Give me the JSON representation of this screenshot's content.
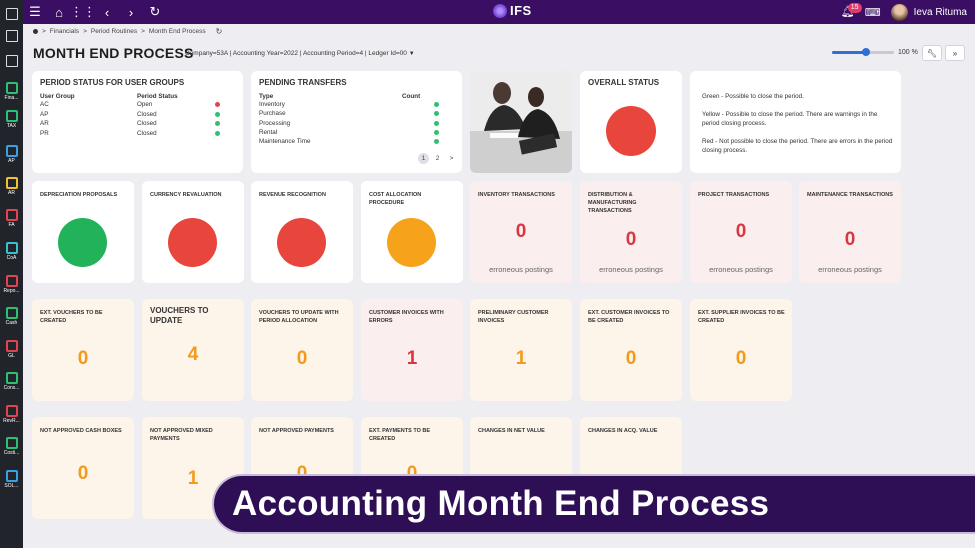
{
  "topbar": {
    "logo_text": "IFS",
    "notification_count": "15",
    "user_name": "Ieva Rituma"
  },
  "sidebar": {
    "items": [
      {
        "label": "",
        "icon": "expand-icon"
      },
      {
        "label": "",
        "icon": "bookmark-icon"
      },
      {
        "label": "",
        "icon": "pen-icon"
      },
      {
        "label": "Fina...",
        "icon": "finance-icon",
        "color": "#2fbf71"
      },
      {
        "label": "TAX",
        "icon": "tax-icon",
        "color": "#2fbf71"
      },
      {
        "label": "AP",
        "icon": "ap-icon",
        "color": "#3aa0e0"
      },
      {
        "label": "AR",
        "icon": "ar-icon",
        "color": "#f2c12e"
      },
      {
        "label": "FA",
        "icon": "fa-icon",
        "color": "#e0454f"
      },
      {
        "label": "CoA",
        "icon": "coa-icon",
        "color": "#3ac0c8"
      },
      {
        "label": "Repo...",
        "icon": "reports-icon",
        "color": "#e0454f"
      },
      {
        "label": "Cash",
        "icon": "cash-icon",
        "color": "#2fbf71"
      },
      {
        "label": "GL",
        "icon": "gl-icon",
        "color": "#e0454f"
      },
      {
        "label": "Cons...",
        "icon": "consolidation-icon",
        "color": "#2fbf71"
      },
      {
        "label": "RevR...",
        "icon": "revenue-icon",
        "color": "#e0454f"
      },
      {
        "label": "Costi...",
        "icon": "costing-icon",
        "color": "#2fbf71"
      },
      {
        "label": "SOL...",
        "icon": "sol-icon",
        "color": "#3aa0e0"
      }
    ]
  },
  "breadcrumb": {
    "items": [
      "Financials",
      "Period Routines",
      "Month End Process"
    ]
  },
  "page": {
    "title": "MONTH END PROCESS",
    "context": "Company=53A | Accounting Year=2022 | Accounting Period=4 | Ledger Id=00",
    "zoom_label": "100 %",
    "zoom_fraction": 0.55
  },
  "period_status": {
    "title": "PERIOD STATUS FOR USER GROUPS",
    "col1": "User Group",
    "col2": "Period Status",
    "rows": [
      {
        "group": "AC",
        "status": "Open",
        "color": "#e0454f"
      },
      {
        "group": "AP",
        "status": "Closed",
        "color": "#2fbf71"
      },
      {
        "group": "AR",
        "status": "Closed",
        "color": "#2fbf71"
      },
      {
        "group": "PR",
        "status": "Closed",
        "color": "#2fbf71"
      }
    ]
  },
  "pending_transfers": {
    "title": "PENDING TRANSFERS",
    "col1": "Type",
    "col2": "Count",
    "rows": [
      {
        "type": "Inventory",
        "color": "#2fbf71"
      },
      {
        "type": "Purchase",
        "color": "#2fbf71"
      },
      {
        "type": "Processing",
        "color": "#2fbf71"
      },
      {
        "type": "Rental",
        "color": "#2fbf71"
      },
      {
        "type": "Maintenance Time",
        "color": "#2fbf71"
      }
    ],
    "pages": [
      "1",
      "2",
      ">"
    ]
  },
  "overall_status": {
    "title": "OVERALL STATUS",
    "color": "#e8453c"
  },
  "legend": {
    "lines": [
      "Green - Possible to close the period.",
      "Yellow - Possible to close the period. There are warnings in the period closing process.",
      "Red - Not possible to close the period. There are errors in the period closing process."
    ]
  },
  "status_cards": [
    {
      "title": "DEPRECIATION PROPOSALS",
      "color": "#22b35a"
    },
    {
      "title": "CURRENCY REVALUATION",
      "color": "#e8453c"
    },
    {
      "title": "REVENUE RECOGNITION",
      "color": "#e8453c"
    },
    {
      "title": "COST ALLOCATION PROCEDURE",
      "color": "#f7a21b"
    }
  ],
  "posting_cards": [
    {
      "title": "INVENTORY TRANSACTIONS",
      "value": "0",
      "sub": "erroneous postings"
    },
    {
      "title": "DISTRIBUTION & MANUFACTURING TRANSACTIONS",
      "value": "0",
      "sub": "erroneous postings"
    },
    {
      "title": "PROJECT TRANSACTIONS",
      "value": "0",
      "sub": "erroneous postings"
    },
    {
      "title": "MAINTENANCE TRANSACTIONS",
      "value": "0",
      "sub": "erroneous postings"
    }
  ],
  "voucher_cards": [
    {
      "title": "EXT. VOUCHERS TO BE CREATED",
      "value": "0",
      "tone": "warn",
      "big": false
    },
    {
      "title": "VOUCHERS TO UPDATE",
      "value": "4",
      "tone": "warn",
      "big": true
    },
    {
      "title": "VOUCHERS TO UPDATE WITH PERIOD ALLOCATION",
      "value": "0",
      "tone": "warn",
      "big": false
    },
    {
      "title": "CUSTOMER INVOICES WITH ERRORS",
      "value": "1",
      "tone": "err",
      "big": false
    },
    {
      "title": "PRELIMINARY CUSTOMER INVOICES",
      "value": "1",
      "tone": "warn",
      "big": false
    },
    {
      "title": "EXT. CUSTOMER INVOICES TO BE CREATED",
      "value": "0",
      "tone": "warn",
      "big": false
    },
    {
      "title": "EXT. SUPPLIER INVOICES TO BE CREATED",
      "value": "0",
      "tone": "warn",
      "big": false
    }
  ],
  "payment_cards": [
    {
      "title": "NOT APPROVED CASH BOXES",
      "value": "0"
    },
    {
      "title": "NOT APPROVED MIXED PAYMENTS",
      "value": "1"
    },
    {
      "title": "NOT APPROVED PAYMENTS",
      "value": "0"
    },
    {
      "title": "EXT. PAYMENTS TO BE CREATED",
      "value": "0"
    },
    {
      "title": "CHANGES IN NET VALUE",
      "value": ""
    },
    {
      "title": "CHANGES IN ACQ. VALUE",
      "value": ""
    }
  ],
  "banner": {
    "text": "Accounting Month End Process"
  },
  "colors": {
    "warn_number": "#f39a1c",
    "err_number": "#d8373f",
    "posting_number": "#d8373f"
  }
}
